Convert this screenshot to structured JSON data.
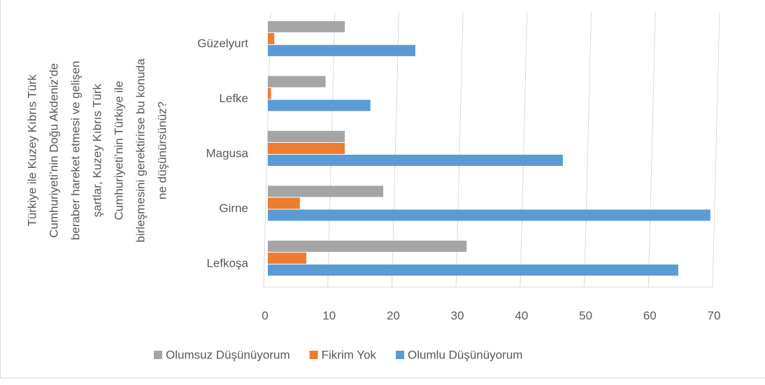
{
  "chart_data": {
    "type": "hbar",
    "ylabel": [
      "Türkiye ile Kuzey Kıbrıs Türk",
      "Cumhuriyeti’nin Doğu Akdeniz’de",
      "beraber hareket etmesi ve gelişen",
      "şartlar, Kuzey Kıbrıs Türk",
      "Cumhuriyeti’nin Türkiye ile",
      "birleşmesini gerektirirse bu konuda",
      "ne düşünürsünüz?"
    ],
    "categories": [
      "Lefkoşa",
      "Girne",
      "Magusa",
      "Lefke",
      "Güzelyurt"
    ],
    "series": [
      {
        "name": "Olumsuz Düşünüyorum",
        "color": "#a5a5a5",
        "values": [
          31,
          18,
          12,
          9,
          12
        ]
      },
      {
        "name": "Fikrim Yok",
        "color": "#ed7d31",
        "values": [
          6,
          5,
          12,
          0.5,
          1
        ]
      },
      {
        "name": "Olumlu Düşünüyorum",
        "color": "#5b9bd5",
        "values": [
          64,
          69,
          46,
          16,
          23
        ]
      }
    ],
    "xlim": [
      0,
      70
    ],
    "xticks": [
      0,
      10,
      20,
      30,
      40,
      50,
      60,
      70
    ],
    "grid": true,
    "legend": "bottom"
  }
}
